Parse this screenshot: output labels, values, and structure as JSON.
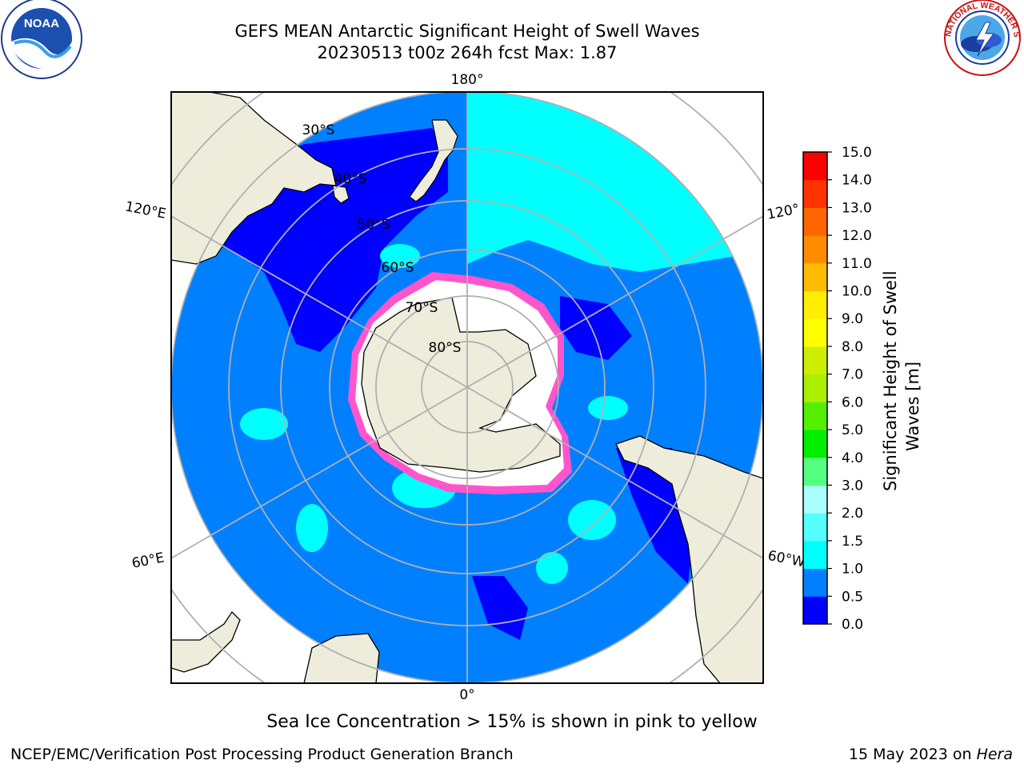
{
  "title": {
    "line1": "GEFS MEAN Antarctic Significant Height of Swell Waves",
    "line2": "20230513 t00z 264h fcst   Max: 1.87"
  },
  "logos": {
    "left": {
      "icon": "noaa-logo",
      "text": "NOAA"
    },
    "right": {
      "icon": "national-weather-service-logo",
      "text": "NATIONAL WEATHER SERVICE"
    }
  },
  "map": {
    "projection": "south-polar-stereographic",
    "lon_labels": {
      "top": "180°",
      "bottom": "0°",
      "left_upper": "120°E",
      "left_lower": "60°E",
      "right_upper": "120°",
      "right_lower": "60°W"
    },
    "lat_labels": [
      "30°S",
      "40°S",
      "50°S",
      "60°S",
      "70°S",
      "80°S"
    ],
    "colors": {
      "land": "#eeeddc",
      "ice": "#ffffff",
      "ice_edge": "#ff55cc",
      "low": "#0000ff",
      "mid": "#0080ff",
      "high": "#00ffff",
      "grid": "#b0b0b0"
    }
  },
  "colorbar": {
    "label": "Significant Height of Swell Waves [m]",
    "ticks": [
      "0.0",
      "0.5",
      "1.0",
      "1.5",
      "2.0",
      "3.0",
      "4.0",
      "5.0",
      "6.0",
      "7.0",
      "8.0",
      "9.0",
      "10.0",
      "11.0",
      "12.0",
      "13.0",
      "14.0",
      "15.0"
    ],
    "colors": [
      "#0000ff",
      "#0080ff",
      "#00ffff",
      "#55ffff",
      "#aaffff",
      "#55ff80",
      "#00ee00",
      "#55ee00",
      "#aaee00",
      "#ccee00",
      "#ffff00",
      "#ffee00",
      "#ffbb00",
      "#ff8c00",
      "#ff6600",
      "#ff3300",
      "#ff0000"
    ]
  },
  "footer": {
    "note": "Sea Ice Concentration > 15% is shown in pink to yellow",
    "credit": "NCEP/EMC/Verification Post Processing Product Generation Branch",
    "date": "15 May 2023 on",
    "machine": "Hera"
  }
}
